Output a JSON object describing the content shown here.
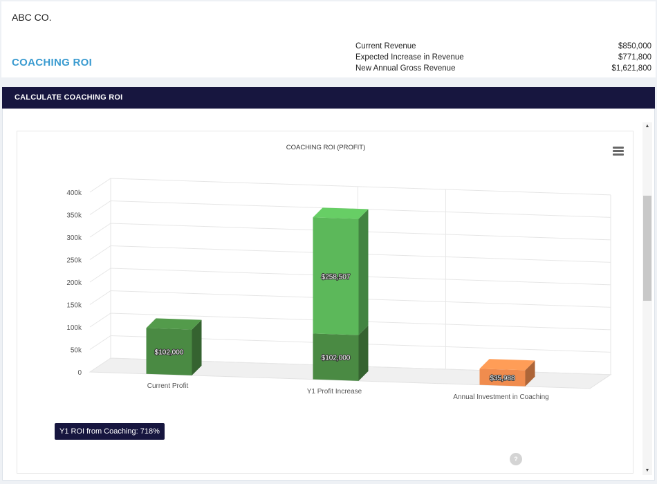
{
  "header": {
    "company": "ABC CO.",
    "page_title": "COACHING ROI",
    "revenue": [
      {
        "label": "Current Revenue",
        "value": "$850,000"
      },
      {
        "label": "Expected Increase in Revenue",
        "value": "$771,800"
      },
      {
        "label": "New Annual Gross Revenue",
        "value": "$1,621,800"
      }
    ]
  },
  "section": {
    "title": "CALCULATE COACHING ROI"
  },
  "roi_badge": "Y1 ROI from Coaching: 718%",
  "help_icon_text": "?",
  "icons": {
    "menu": "hamburger-menu-icon",
    "help": "help-icon",
    "scroll_up": "triangle-up-icon",
    "scroll_down": "triangle-down-icon"
  },
  "colors": {
    "header_bg": "#17163f",
    "title_blue": "#3a9bd0",
    "dark_green": "#4a8a43",
    "light_green": "#5cb85a",
    "orange": "#f08c4e"
  },
  "chart_data": {
    "type": "bar",
    "title": "COACHING ROI (PROFIT)",
    "stacked": true,
    "three_d": true,
    "categories": [
      "Current Profit",
      "Y1 Profit Increase",
      "Annual Investment in Coaching"
    ],
    "y_ticks": [
      "0",
      "50k",
      "100k",
      "150k",
      "200k",
      "250k",
      "300k",
      "350k",
      "400k"
    ],
    "ylim": [
      0,
      400000
    ],
    "grid": true,
    "series": [
      {
        "values": [
          102000,
          102000,
          0
        ],
        "labels": [
          "$102,000",
          "$102,000",
          ""
        ],
        "color": "#4a8a43"
      },
      {
        "values": [
          0,
          258507,
          0
        ],
        "labels": [
          "",
          "$258,507",
          ""
        ],
        "color": "#5cb85a"
      },
      {
        "values": [
          0,
          0,
          35988
        ],
        "labels": [
          "",
          "",
          "$35,988"
        ],
        "color": "#f08c4e"
      }
    ]
  }
}
